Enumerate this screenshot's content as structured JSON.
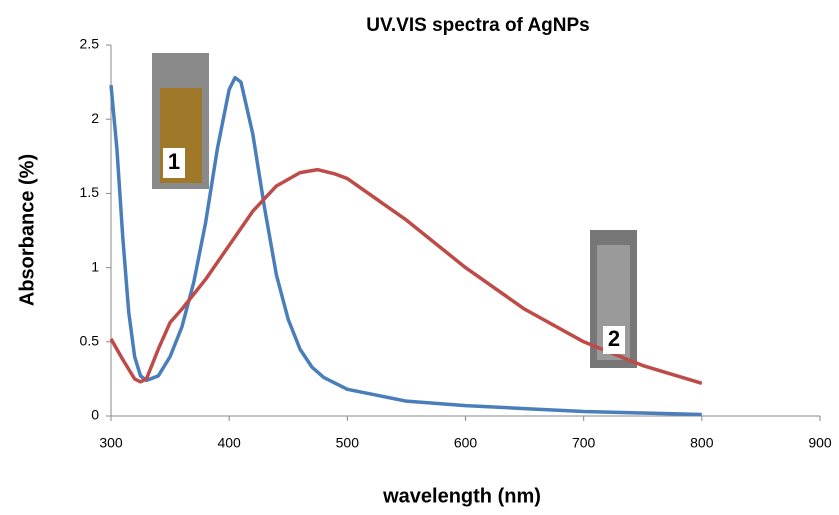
{
  "chart_data": {
    "type": "line",
    "title": "UV.VIS spectra of AgNPs",
    "xlabel": "wavelength (nm)",
    "ylabel": "Absorbance (%)",
    "xlim": [
      300,
      900
    ],
    "xticks": [
      300,
      400,
      500,
      600,
      700,
      800,
      900
    ],
    "ylim": [
      0,
      2.5
    ],
    "yticks": [
      0,
      0.5,
      1,
      1.5,
      2,
      2.5
    ],
    "annotations": [
      "1",
      "2"
    ],
    "series": [
      {
        "color": "#4a7ebb",
        "x": [
          300,
          305,
          310,
          315,
          320,
          325,
          330,
          340,
          350,
          360,
          370,
          380,
          390,
          400,
          405,
          410,
          420,
          430,
          440,
          450,
          460,
          470,
          480,
          500,
          550,
          600,
          650,
          700,
          750,
          800
        ],
        "values": [
          2.23,
          1.8,
          1.2,
          0.7,
          0.4,
          0.27,
          0.24,
          0.27,
          0.4,
          0.6,
          0.9,
          1.3,
          1.8,
          2.2,
          2.28,
          2.25,
          1.9,
          1.4,
          0.95,
          0.65,
          0.45,
          0.33,
          0.26,
          0.18,
          0.1,
          0.07,
          0.05,
          0.03,
          0.02,
          0.01
        ]
      },
      {
        "color": "#be4b48",
        "x": [
          300,
          310,
          320,
          325,
          330,
          340,
          350,
          360,
          380,
          400,
          420,
          440,
          460,
          475,
          490,
          500,
          550,
          600,
          650,
          700,
          750,
          800
        ],
        "values": [
          0.52,
          0.38,
          0.25,
          0.23,
          0.25,
          0.45,
          0.63,
          0.72,
          0.92,
          1.15,
          1.38,
          1.55,
          1.64,
          1.66,
          1.63,
          1.6,
          1.32,
          1.0,
          0.72,
          0.5,
          0.34,
          0.22
        ]
      }
    ]
  }
}
